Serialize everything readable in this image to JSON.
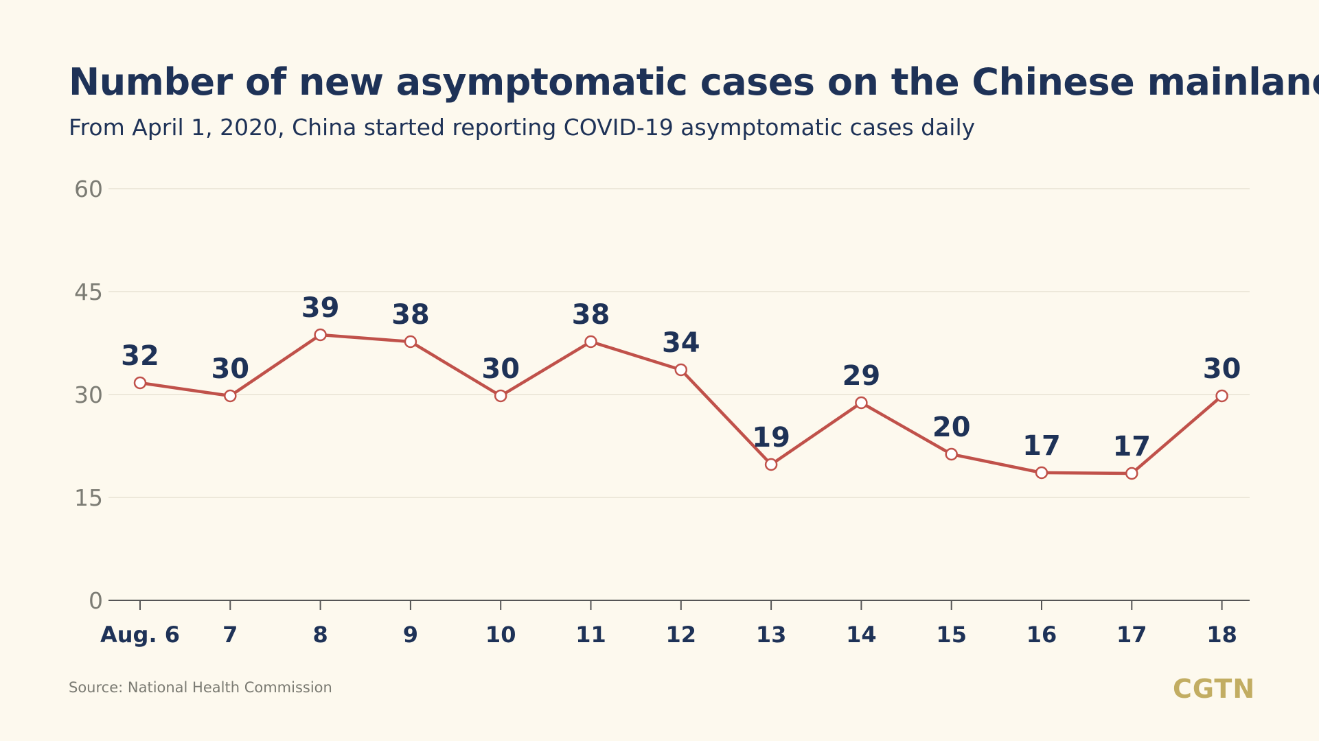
{
  "colors": {
    "background": "#fdf9ee",
    "title": "#1e3257",
    "line": "#c0514a",
    "grid": "#e8e3d4",
    "axis": "#555555",
    "logo": "#c2ad62"
  },
  "source": "Source: National Health Commission",
  "logo": "CGTN",
  "chart_data": {
    "type": "line",
    "title": "Number of new asymptomatic cases on the Chinese mainland",
    "subtitle": "From April 1, 2020, China started reporting COVID-19 asymptomatic cases daily",
    "xlabel": "",
    "ylabel": "",
    "categories": [
      "Aug. 6",
      "7",
      "8",
      "9",
      "10",
      "11",
      "12",
      "13",
      "14",
      "15",
      "16",
      "17",
      "18"
    ],
    "values": [
      32,
      30,
      39,
      38,
      30,
      38,
      34,
      19,
      29,
      20,
      17,
      17,
      30
    ],
    "plotted_values": [
      31.7,
      29.8,
      38.7,
      37.7,
      29.8,
      37.7,
      33.6,
      19.8,
      28.8,
      21.3,
      18.6,
      18.5,
      29.8
    ],
    "ylim": [
      0,
      60
    ],
    "yticks": [
      0,
      15,
      30,
      45,
      60
    ],
    "grid": true,
    "legend": "none"
  }
}
